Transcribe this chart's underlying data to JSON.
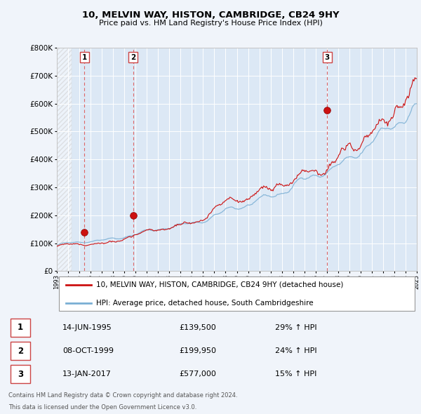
{
  "title": "10, MELVIN WAY, HISTON, CAMBRIDGE, CB24 9HY",
  "subtitle": "Price paid vs. HM Land Registry's House Price Index (HPI)",
  "bg_color": "#f0f4fa",
  "plot_bg_color": "#dce8f5",
  "grid_color": "#ffffff",
  "hpi_color": "#7aafd4",
  "price_color": "#cc1111",
  "sale_marker_color": "#cc1111",
  "vline_color": "#cc4444",
  "ylim": [
    0,
    800000
  ],
  "yticks": [
    0,
    100000,
    200000,
    300000,
    400000,
    500000,
    600000,
    700000,
    800000
  ],
  "xmin_year": 1993,
  "xmax_year": 2025,
  "xtick_years": [
    1993,
    1994,
    1995,
    1996,
    1997,
    1998,
    1999,
    2000,
    2001,
    2002,
    2003,
    2004,
    2005,
    2006,
    2007,
    2008,
    2009,
    2010,
    2011,
    2012,
    2013,
    2014,
    2015,
    2016,
    2017,
    2018,
    2019,
    2020,
    2021,
    2022,
    2023,
    2024,
    2025
  ],
  "sales": [
    {
      "label": "1",
      "date_dec": 1995.45,
      "price": 139500,
      "date_str": "14-JUN-1995",
      "pct": "29%",
      "dir": "↑"
    },
    {
      "label": "2",
      "date_dec": 1999.77,
      "price": 199950,
      "date_str": "08-OCT-1999",
      "pct": "24%",
      "dir": "↑"
    },
    {
      "label": "3",
      "date_dec": 2017.04,
      "price": 577000,
      "date_str": "13-JAN-2017",
      "pct": "15%",
      "dir": "↑"
    }
  ],
  "legend_line1": "10, MELVIN WAY, HISTON, CAMBRIDGE, CB24 9HY (detached house)",
  "legend_line2": "HPI: Average price, detached house, South Cambridgeshire",
  "footer_line1": "Contains HM Land Registry data © Crown copyright and database right 2024.",
  "footer_line2": "This data is licensed under the Open Government Licence v3.0."
}
